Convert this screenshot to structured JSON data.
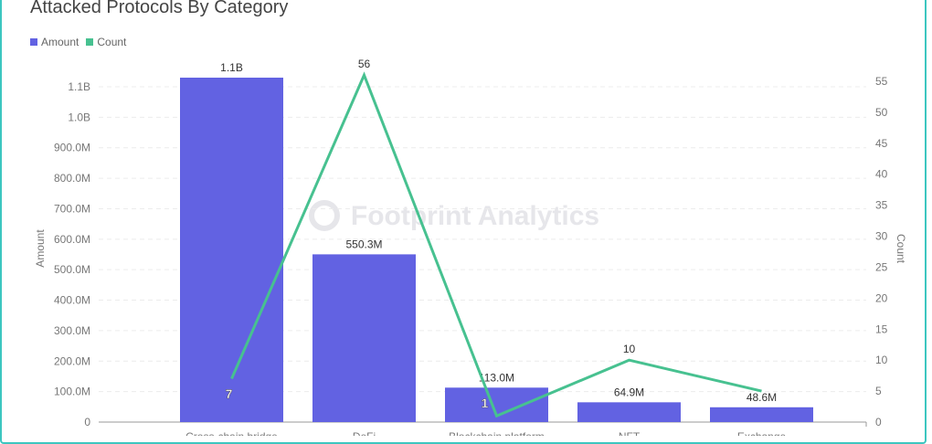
{
  "title": "Attacked Protocols By Category",
  "watermark": "Footprint Analytics",
  "colors": {
    "amount": "#6262e2",
    "count": "#47c190",
    "frame": "#3cc6c0"
  },
  "chart_data": {
    "type": "bar+line",
    "title": "Attacked Protocols By Category",
    "categories": [
      "Cross-chain bridge",
      "DeFi",
      "Blockchain platform",
      "NFT",
      "Exchange"
    ],
    "series": [
      {
        "name": "Amount",
        "type": "bar",
        "axis": "left",
        "values": [
          1130000000,
          550300000,
          113000000,
          64900000,
          48600000
        ],
        "labels": [
          "1.1B",
          "550.3M",
          "113.0M",
          "64.9M",
          "48.6M"
        ]
      },
      {
        "name": "Count",
        "type": "line",
        "axis": "right",
        "values": [
          7,
          56,
          1,
          10,
          5
        ],
        "labels": [
          "7",
          "56",
          "1",
          "10",
          "5"
        ]
      }
    ],
    "ylabel": "Amount",
    "y2label": "Count",
    "ylim": [
      0,
      1100000000
    ],
    "y2lim": [
      0,
      55
    ],
    "yticks": [
      "0",
      "100.0M",
      "200.0M",
      "300.0M",
      "400.0M",
      "500.0M",
      "600.0M",
      "700.0M",
      "800.0M",
      "900.0M",
      "1.0B",
      "1.1B"
    ],
    "y2ticks": [
      "0",
      "5",
      "10",
      "15",
      "20",
      "25",
      "30",
      "35",
      "40",
      "45",
      "50",
      "55"
    ],
    "grid": true,
    "legend": "top-left"
  }
}
